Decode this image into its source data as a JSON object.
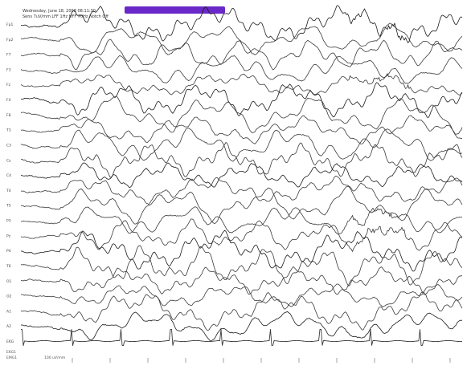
{
  "header": {
    "line1": "Wednesday, June 18, 2008 08:11:30",
    "line2": "Sens 7uV/mm  LFF 1Hz  HFF 70Hz  Notch Off",
    "highlight_color": "#6a28c8"
  },
  "montage": {
    "channels": [
      {
        "label": "Fp1"
      },
      {
        "label": "Fp2"
      },
      {
        "label": "F7"
      },
      {
        "label": "F3"
      },
      {
        "label": "Fz"
      },
      {
        "label": "F4"
      },
      {
        "label": "F8"
      },
      {
        "label": "T3"
      },
      {
        "label": "C3"
      },
      {
        "label": "Cz"
      },
      {
        "label": "C4"
      },
      {
        "label": "T4"
      },
      {
        "label": "T5"
      },
      {
        "label": "P3"
      },
      {
        "label": "Pz"
      },
      {
        "label": "P4"
      },
      {
        "label": "T6"
      },
      {
        "label": "O1"
      },
      {
        "label": "O2"
      },
      {
        "label": "A1"
      },
      {
        "label": "A2"
      },
      {
        "label": "EKG"
      }
    ]
  },
  "footer": {
    "left_line1": "EKG1",
    "left_line2": "EMG1",
    "scale": "100 uV/mm"
  },
  "colors": {
    "trace": "#3a3a3a",
    "trace_dark": "#1a1a1a",
    "background": "#ffffff"
  }
}
